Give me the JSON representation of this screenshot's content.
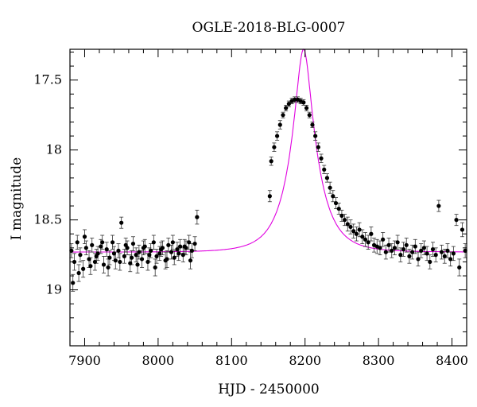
{
  "chart_data": {
    "type": "scatter",
    "title": "OGLE-2018-BLG-0007",
    "xlabel": "HJD - 2450000",
    "ylabel": "I magnitude",
    "xlim": [
      7880,
      8420
    ],
    "ylim": [
      19.4,
      17.28
    ],
    "y_inverted": true,
    "x_ticks": [
      7900,
      8000,
      8100,
      8200,
      8300,
      8400
    ],
    "y_ticks": [
      17.5,
      18,
      18.5,
      19
    ],
    "x_tick_labels": [
      "7900",
      "8000",
      "8100",
      "8200",
      "8300",
      "8400"
    ],
    "y_tick_labels": [
      "17.5",
      "18",
      "18.5",
      "19"
    ],
    "grid": false,
    "legend": "none",
    "colors": {
      "points": "#000000",
      "model": "#e000e0"
    },
    "model": {
      "name": "",
      "t0": 8198,
      "u0": 0.27,
      "tE": 36,
      "base_mag": 18.73
    },
    "series": [
      {
        "name": "",
        "kind": "points_with_errors",
        "x": [
          7882,
          7886,
          7890,
          7894,
          7898,
          7902,
          7906,
          7910,
          7914,
          7918,
          7922,
          7926,
          7930,
          7934,
          7938,
          7942,
          7946,
          7950,
          7954,
          7958,
          7962,
          7966,
          7970,
          7974,
          7978,
          7982,
          7986,
          7990,
          7994,
          7998,
          8002,
          8006,
          8010,
          8014,
          8018,
          8022,
          8026,
          8030,
          8034,
          8038,
          8042,
          8046,
          8050,
          8053,
          8152,
          8154,
          8158,
          8162,
          8166,
          8170,
          8174,
          8178,
          8182,
          8186,
          8190,
          8194,
          8198,
          8202,
          8206,
          8210,
          8214,
          8218,
          8222,
          8226,
          8230,
          8234,
          8238,
          8242,
          8246,
          8250,
          8254,
          8258,
          8262,
          8266,
          8270,
          8274,
          8278,
          8282,
          8286,
          8290,
          8294,
          8298,
          8302,
          8306,
          8310,
          8314,
          8318,
          8322,
          8326,
          8330,
          8334,
          8338,
          8342,
          8346,
          8350,
          8354,
          8358,
          8362,
          8366,
          8370,
          8374,
          8378,
          8382,
          8386,
          8390,
          8394,
          8398,
          8402,
          8406,
          8410,
          8414,
          8418,
          7884,
          7892,
          7900,
          7908,
          7916,
          7924,
          7932,
          7940,
          7948,
          7956,
          7964,
          7972,
          7980,
          7988,
          7996,
          8004,
          8012,
          8020,
          8028,
          8036,
          8044
        ],
        "y": [
          18.72,
          18.8,
          18.66,
          18.75,
          18.85,
          18.7,
          18.78,
          18.68,
          18.8,
          18.74,
          18.69,
          18.82,
          18.71,
          18.77,
          18.66,
          18.79,
          18.72,
          18.52,
          18.76,
          18.7,
          18.81,
          18.67,
          18.75,
          18.73,
          18.78,
          18.69,
          18.8,
          18.72,
          18.66,
          18.76,
          18.74,
          18.7,
          18.79,
          18.68,
          18.73,
          18.77,
          18.71,
          18.69,
          18.75,
          18.7,
          18.66,
          18.72,
          18.67,
          18.48,
          18.33,
          18.08,
          17.98,
          17.9,
          17.82,
          17.75,
          17.7,
          17.67,
          17.65,
          17.64,
          17.64,
          17.65,
          17.66,
          17.7,
          17.75,
          17.82,
          17.9,
          17.98,
          18.06,
          18.14,
          18.2,
          18.27,
          18.33,
          18.38,
          18.42,
          18.47,
          18.5,
          18.53,
          18.55,
          18.58,
          18.6,
          18.57,
          18.62,
          18.64,
          18.66,
          18.6,
          18.68,
          18.69,
          18.7,
          18.64,
          18.73,
          18.68,
          18.72,
          18.7,
          18.66,
          18.75,
          18.71,
          18.68,
          18.76,
          18.73,
          18.69,
          18.78,
          18.72,
          18.7,
          18.74,
          18.8,
          18.71,
          18.75,
          18.4,
          18.73,
          18.76,
          18.72,
          18.78,
          18.74,
          18.5,
          18.84,
          18.57,
          18.72,
          18.95,
          18.88,
          18.62,
          18.83,
          18.76,
          18.66,
          18.84,
          18.74,
          18.8,
          18.68,
          18.77,
          18.82,
          18.7,
          18.75,
          18.84,
          18.71,
          18.78,
          18.66,
          18.74,
          18.69,
          18.79
        ],
        "y_err": [
          0.05,
          0.06,
          0.05,
          0.05,
          0.06,
          0.05,
          0.06,
          0.05,
          0.06,
          0.05,
          0.05,
          0.06,
          0.05,
          0.05,
          0.05,
          0.06,
          0.05,
          0.04,
          0.05,
          0.05,
          0.06,
          0.05,
          0.05,
          0.05,
          0.06,
          0.05,
          0.06,
          0.05,
          0.05,
          0.05,
          0.05,
          0.05,
          0.06,
          0.05,
          0.05,
          0.05,
          0.05,
          0.05,
          0.05,
          0.05,
          0.05,
          0.05,
          0.05,
          0.05,
          0.04,
          0.03,
          0.03,
          0.03,
          0.03,
          0.02,
          0.02,
          0.02,
          0.02,
          0.02,
          0.02,
          0.02,
          0.02,
          0.02,
          0.02,
          0.02,
          0.03,
          0.03,
          0.03,
          0.03,
          0.03,
          0.04,
          0.04,
          0.04,
          0.04,
          0.04,
          0.04,
          0.05,
          0.05,
          0.05,
          0.05,
          0.05,
          0.05,
          0.05,
          0.05,
          0.05,
          0.05,
          0.05,
          0.05,
          0.05,
          0.05,
          0.05,
          0.05,
          0.05,
          0.05,
          0.05,
          0.05,
          0.05,
          0.05,
          0.05,
          0.05,
          0.05,
          0.05,
          0.05,
          0.05,
          0.05,
          0.05,
          0.05,
          0.04,
          0.05,
          0.05,
          0.05,
          0.05,
          0.05,
          0.04,
          0.06,
          0.05,
          0.05,
          0.06,
          0.06,
          0.05,
          0.06,
          0.05,
          0.05,
          0.06,
          0.05,
          0.06,
          0.05,
          0.05,
          0.06,
          0.05,
          0.05,
          0.06,
          0.05,
          0.06,
          0.05,
          0.05,
          0.05,
          0.06
        ]
      }
    ]
  }
}
